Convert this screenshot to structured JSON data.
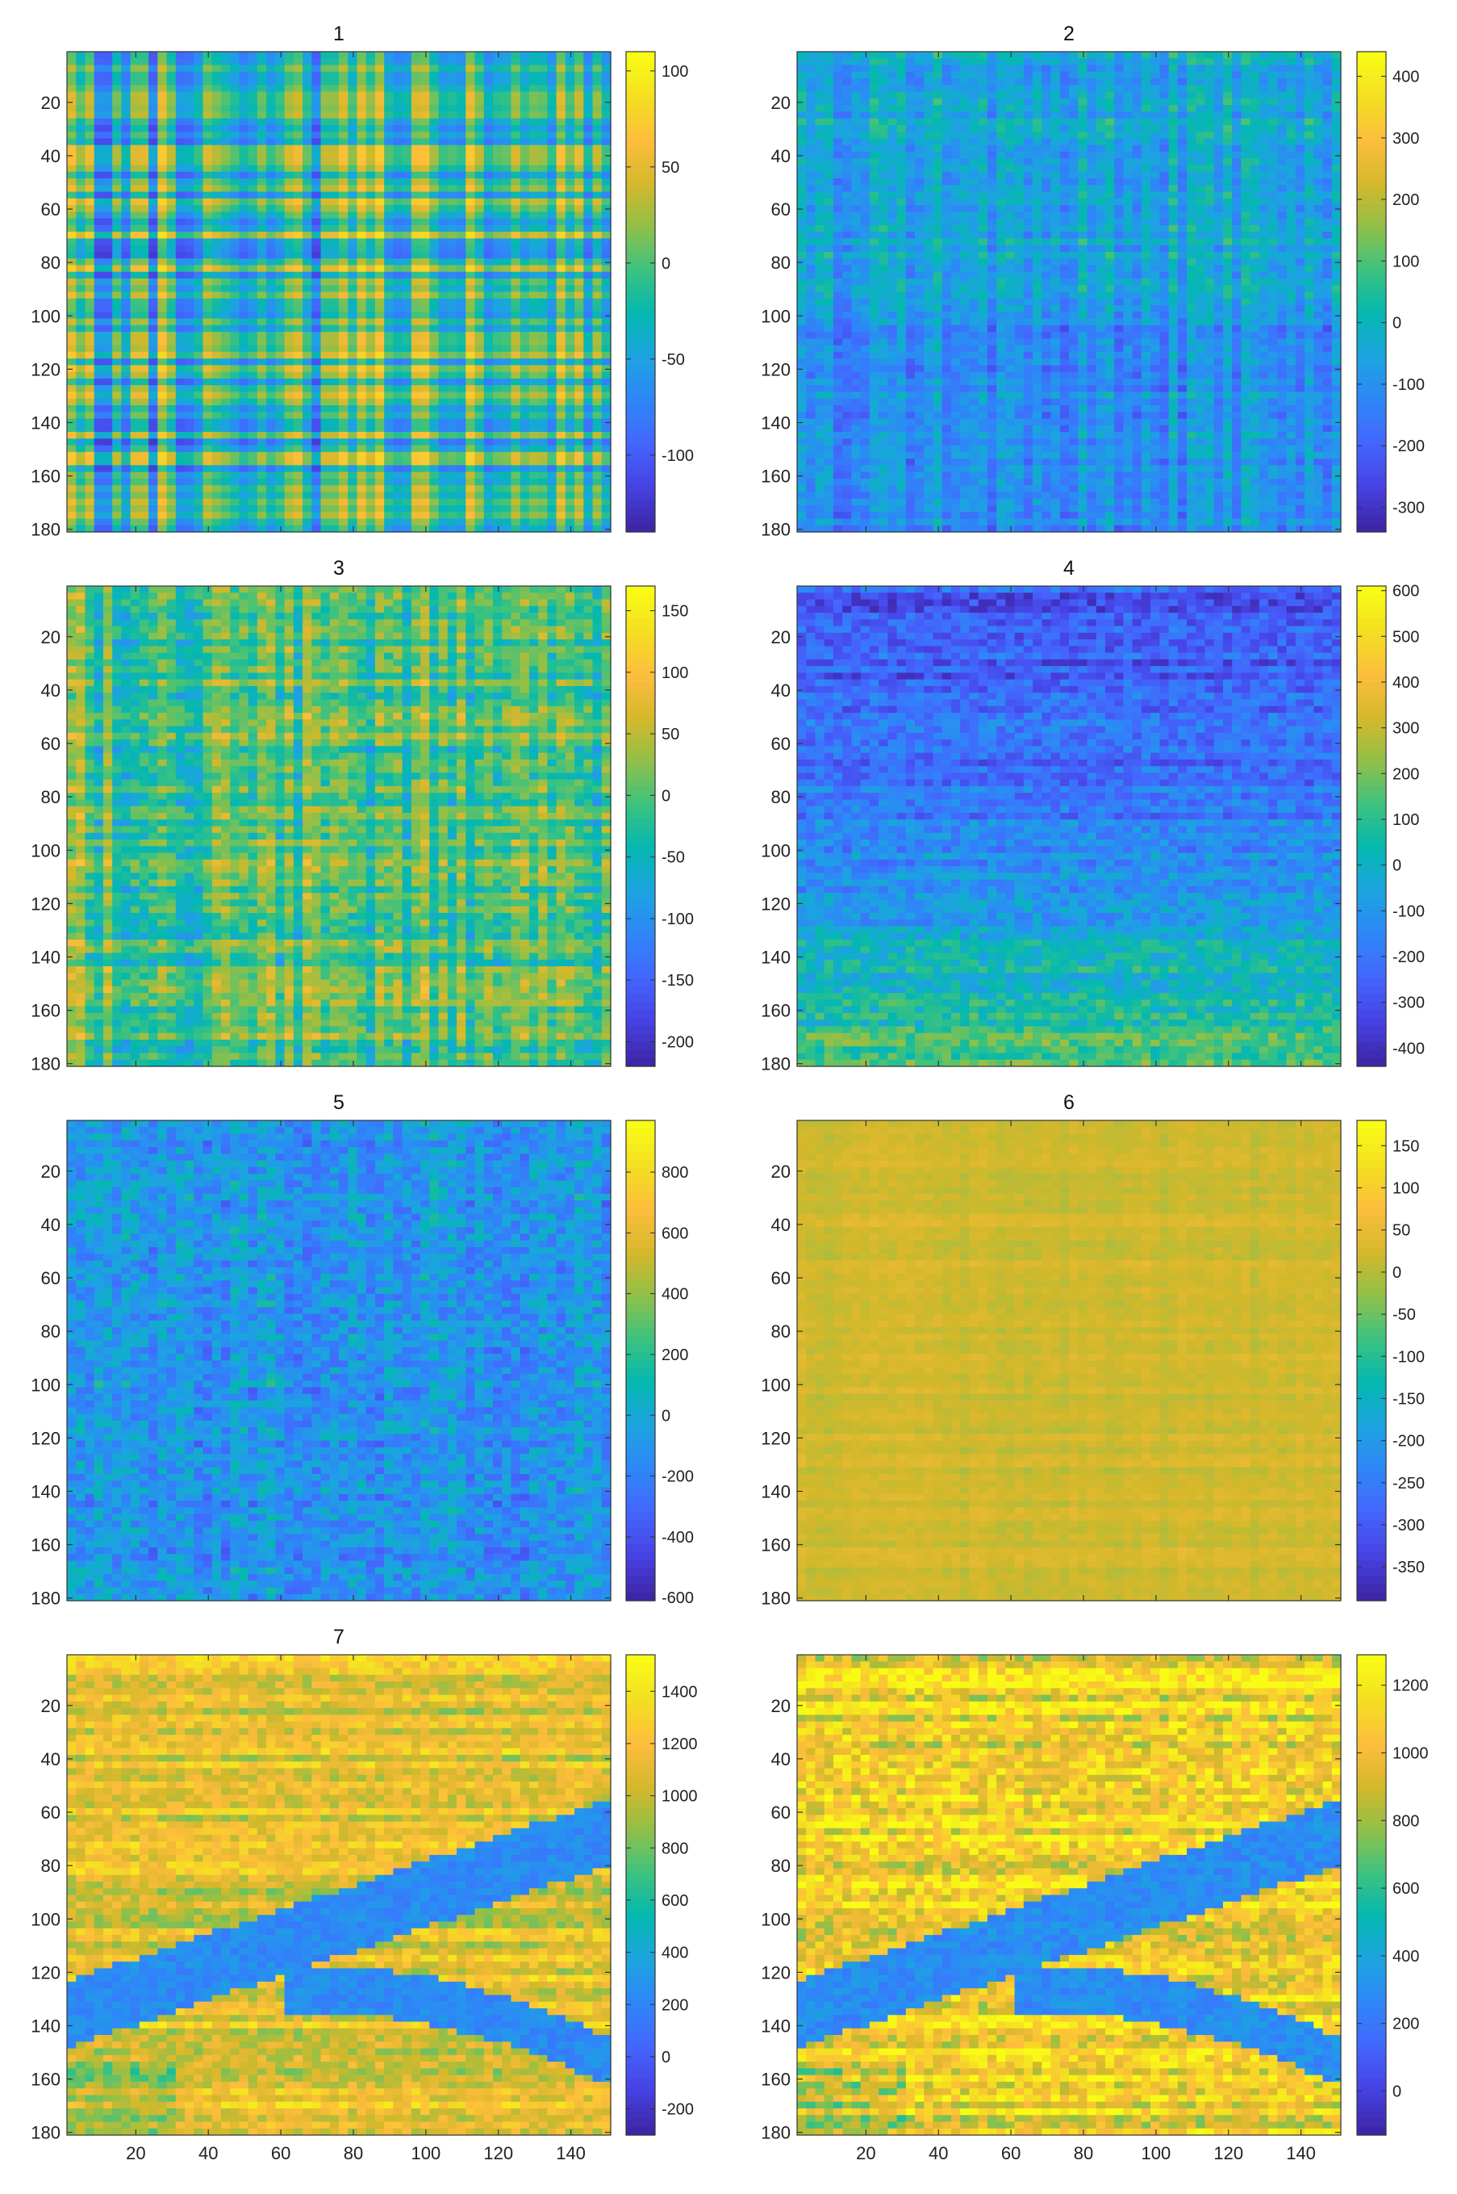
{
  "colormap": [
    "#3e26a8",
    "#4743e5",
    "#4367fd",
    "#2e87f7",
    "#1ca4e0",
    "#04b8b0",
    "#3cc27f",
    "#8fc049",
    "#d4b82b",
    "#fdbd3c",
    "#f4de22",
    "#f9fb15"
  ],
  "chart_data": [
    {
      "type": "heatmap",
      "title": "1",
      "x_ticks": [],
      "y_ticks": [
        "20",
        "40",
        "60",
        "80",
        "100",
        "120",
        "140",
        "160",
        "180"
      ],
      "xlim": [
        1,
        151
      ],
      "ylim": [
        1,
        181
      ],
      "clim": [
        -140,
        110
      ],
      "colorbar_ticks": [
        {
          "value": 100,
          "label": "100"
        },
        {
          "value": 50,
          "label": "50"
        },
        {
          "value": 0,
          "label": "0"
        },
        {
          "value": -50,
          "label": "-50"
        },
        {
          "value": -100,
          "label": "-100"
        }
      ],
      "pattern": "crosshatch",
      "base": -0.05,
      "amplitude": 0.9,
      "seed": 11
    },
    {
      "type": "heatmap",
      "title": "2",
      "x_ticks": [],
      "y_ticks": [
        "20",
        "40",
        "60",
        "80",
        "100",
        "120",
        "140",
        "160",
        "180"
      ],
      "xlim": [
        1,
        151
      ],
      "ylim": [
        1,
        181
      ],
      "clim": [
        -340,
        440
      ],
      "colorbar_ticks": [
        {
          "value": 400,
          "label": "400"
        },
        {
          "value": 300,
          "label": "300"
        },
        {
          "value": 200,
          "label": "200"
        },
        {
          "value": 100,
          "label": "100"
        },
        {
          "value": 0,
          "label": "0"
        },
        {
          "value": -100,
          "label": "-100"
        },
        {
          "value": -200,
          "label": "-200"
        },
        {
          "value": -300,
          "label": "-300"
        }
      ],
      "pattern": "streaks",
      "base": -0.25,
      "amplitude": 0.55,
      "seed": 23
    },
    {
      "type": "heatmap",
      "title": "3",
      "x_ticks": [],
      "y_ticks": [
        "20",
        "40",
        "60",
        "80",
        "100",
        "120",
        "140",
        "160",
        "180"
      ],
      "xlim": [
        1,
        151
      ],
      "ylim": [
        1,
        181
      ],
      "clim": [
        -220,
        170
      ],
      "colorbar_ticks": [
        {
          "value": 150,
          "label": "150"
        },
        {
          "value": 100,
          "label": "100"
        },
        {
          "value": 50,
          "label": "50"
        },
        {
          "value": 0,
          "label": "0"
        },
        {
          "value": -50,
          "label": "-50"
        },
        {
          "value": -100,
          "label": "-100"
        },
        {
          "value": -150,
          "label": "-150"
        },
        {
          "value": -200,
          "label": "-200"
        }
      ],
      "pattern": "patchy",
      "base": 0.1,
      "amplitude": 0.6,
      "seed": 37
    },
    {
      "type": "heatmap",
      "title": "4",
      "x_ticks": [],
      "y_ticks": [
        "20",
        "40",
        "60",
        "80",
        "100",
        "120",
        "140",
        "160",
        "180"
      ],
      "xlim": [
        1,
        151
      ],
      "ylim": [
        1,
        181
      ],
      "clim": [
        -440,
        610
      ],
      "colorbar_ticks": [
        {
          "value": 600,
          "label": "600"
        },
        {
          "value": 500,
          "label": "500"
        },
        {
          "value": 400,
          "label": "400"
        },
        {
          "value": 300,
          "label": "300"
        },
        {
          "value": 200,
          "label": "200"
        },
        {
          "value": 100,
          "label": "100"
        },
        {
          "value": 0,
          "label": "0"
        },
        {
          "value": -100,
          "label": "-100"
        },
        {
          "value": -200,
          "label": "-200"
        },
        {
          "value": -300,
          "label": "-300"
        },
        {
          "value": -400,
          "label": "-400"
        }
      ],
      "pattern": "gradient_down",
      "base": -0.45,
      "amplitude": 0.6,
      "seed": 41
    },
    {
      "type": "heatmap",
      "title": "5",
      "x_ticks": [],
      "y_ticks": [
        "20",
        "40",
        "60",
        "80",
        "100",
        "120",
        "140",
        "160",
        "180"
      ],
      "xlim": [
        1,
        151
      ],
      "ylim": [
        1,
        181
      ],
      "clim": [
        -610,
        970
      ],
      "colorbar_ticks": [
        {
          "value": 800,
          "label": "800"
        },
        {
          "value": 600,
          "label": "600"
        },
        {
          "value": 400,
          "label": "400"
        },
        {
          "value": 200,
          "label": "200"
        },
        {
          "value": 0,
          "label": "0"
        },
        {
          "value": -200,
          "label": "-200"
        },
        {
          "value": -400,
          "label": "-400"
        },
        {
          "value": -600,
          "label": "-600"
        }
      ],
      "pattern": "noisy",
      "base": -0.35,
      "amplitude": 0.5,
      "seed": 53
    },
    {
      "type": "heatmap",
      "title": "6",
      "x_ticks": [],
      "y_ticks": [
        "20",
        "40",
        "60",
        "80",
        "100",
        "120",
        "140",
        "160",
        "180"
      ],
      "xlim": [
        1,
        151
      ],
      "ylim": [
        1,
        181
      ],
      "clim": [
        -390,
        180
      ],
      "colorbar_ticks": [
        {
          "value": 150,
          "label": "150"
        },
        {
          "value": 100,
          "label": "100"
        },
        {
          "value": 50,
          "label": "50"
        },
        {
          "value": 0,
          "label": "0"
        },
        {
          "value": -50,
          "label": "-50"
        },
        {
          "value": -100,
          "label": "-100"
        },
        {
          "value": -150,
          "label": "-150"
        },
        {
          "value": -200,
          "label": "-200"
        },
        {
          "value": -250,
          "label": "-250"
        },
        {
          "value": -300,
          "label": "-300"
        },
        {
          "value": -350,
          "label": "-350"
        }
      ],
      "pattern": "smooth",
      "base": 0.45,
      "amplitude": 0.3,
      "seed": 67
    },
    {
      "type": "heatmap",
      "title": "7",
      "x_ticks": [
        "20",
        "40",
        "60",
        "80",
        "100",
        "120",
        "140"
      ],
      "y_ticks": [
        "20",
        "40",
        "60",
        "80",
        "100",
        "120",
        "140",
        "160",
        "180"
      ],
      "xlim": [
        1,
        151
      ],
      "ylim": [
        1,
        181
      ],
      "clim": [
        -300,
        1540
      ],
      "colorbar_ticks": [
        {
          "value": 1400,
          "label": "1400"
        },
        {
          "value": 1200,
          "label": "1200"
        },
        {
          "value": 1000,
          "label": "1000"
        },
        {
          "value": 800,
          "label": "800"
        },
        {
          "value": 600,
          "label": "600"
        },
        {
          "value": 400,
          "label": "400"
        },
        {
          "value": 200,
          "label": "200"
        },
        {
          "value": 0,
          "label": "0"
        },
        {
          "value": -200,
          "label": "-200"
        }
      ],
      "pattern": "scene_blurry",
      "base": 0.2,
      "amplitude": 0.7,
      "seed": 79
    },
    {
      "type": "heatmap",
      "title": "",
      "x_ticks": [
        "20",
        "40",
        "60",
        "80",
        "100",
        "120",
        "140"
      ],
      "y_ticks": [
        "20",
        "40",
        "60",
        "80",
        "100",
        "120",
        "140",
        "160",
        "180"
      ],
      "xlim": [
        1,
        151
      ],
      "ylim": [
        1,
        181
      ],
      "clim": [
        -130,
        1290
      ],
      "colorbar_ticks": [
        {
          "value": 1200,
          "label": "1200"
        },
        {
          "value": 1000,
          "label": "1000"
        },
        {
          "value": 800,
          "label": "800"
        },
        {
          "value": 600,
          "label": "600"
        },
        {
          "value": 400,
          "label": "400"
        },
        {
          "value": 200,
          "label": "200"
        },
        {
          "value": 0,
          "label": "0"
        }
      ],
      "pattern": "scene",
      "base": 0.3,
      "amplitude": 0.8,
      "seed": 97
    }
  ]
}
